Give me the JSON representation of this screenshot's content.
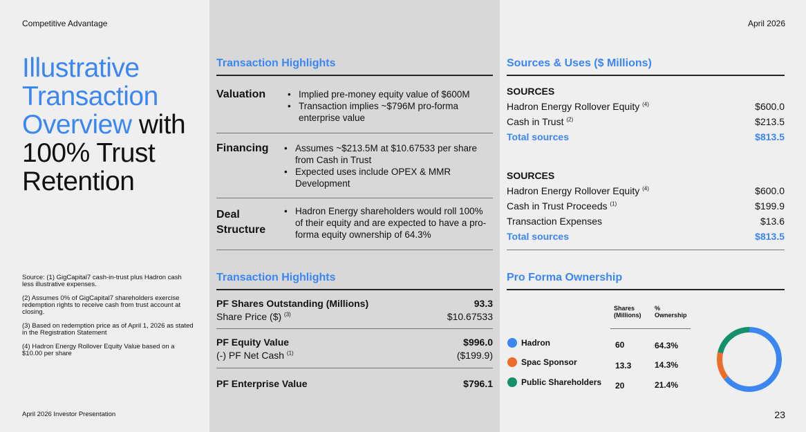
{
  "header": {
    "section": "Competitive Advantage",
    "date": "April 2026"
  },
  "title": {
    "line1": "Illustrative",
    "line2": "Transaction",
    "line3a": "Overview",
    "line3b": " with",
    "line4": "100% Trust",
    "line5": "Retention"
  },
  "highlights": {
    "heading": "Transaction Highlights",
    "items": [
      {
        "label": "Valuation",
        "bullets": [
          "Implied pre-money equity value of $600M",
          "Transaction implies ~$796M pro-forma enterprise value"
        ]
      },
      {
        "label": "Financing",
        "bullets": [
          "Assumes ~$213.5M at $10.67533 per share from Cash in Trust",
          "Expected uses include OPEX & MMR Development"
        ]
      },
      {
        "label": "Deal Structure",
        "bullets": [
          "Hadron Energy shareholders would roll 100% of their equity and are expected to have a pro-forma equity ownership of 64.3%"
        ]
      }
    ]
  },
  "sources_uses": {
    "heading": "Sources & Uses ($ Millions)",
    "blocks": [
      {
        "title": "SOURCES",
        "rows": [
          {
            "label": "Hadron Energy Rollover Equity",
            "note": "(4)",
            "value": "$600.0"
          },
          {
            "label": "Cash in Trust",
            "note": "(2)",
            "value": "$213.5"
          }
        ],
        "total_label": "Total sources",
        "total": "$813.5"
      },
      {
        "title": "SOURCES",
        "rows": [
          {
            "label": "Hadron Energy Rollover Equity",
            "note": "(4)",
            "value": "$600.0"
          },
          {
            "label": "Cash in Trust Proceeds",
            "note": "(1)",
            "value": "$199.9"
          },
          {
            "label": "Transaction Expenses",
            "note": "",
            "value": "$13.6"
          }
        ],
        "total_label": "Total sources",
        "total": "$813.5"
      }
    ]
  },
  "highlights2": {
    "heading": "Transaction Highlights",
    "rows": [
      {
        "label": "PF Shares Outstanding (Millions)",
        "value": "93.3",
        "bold": true
      },
      {
        "label": "Share Price ($)",
        "note": "(3)",
        "value": "$10.67533"
      },
      {
        "label": "PF Equity Value",
        "value": "$996.0",
        "bold": true
      },
      {
        "label": "(-) PF Net Cash",
        "note": "(1)",
        "value": "($199.9)"
      },
      {
        "label": "PF Enterprise Value",
        "value": "$796.1",
        "bold": true
      }
    ]
  },
  "ownership": {
    "heading": "Pro Forma Ownership",
    "col1": "Shares (Millions)",
    "col2": "% Ownership",
    "rows": [
      {
        "name": "Hadron",
        "shares": "60",
        "pct": "64.3%",
        "color": "#3b86f0",
        "value": 64.3
      },
      {
        "name": "Spac Sponsor",
        "shares": "13.3",
        "pct": "14.3%",
        "color": "#ee6c2a",
        "value": 14.3
      },
      {
        "name": "Public Shareholders",
        "shares": "20",
        "pct": "21.4%",
        "color": "#14906a",
        "value": 21.4
      }
    ]
  },
  "footnotes": [
    "Source: (1) GigCapital7 cash-in-trust plus Hadron cash less illustrative expenses.",
    "(2) Assumes 0% of GigCapital7 shareholders exercise redemption rights to receive cash from trust account at closing.",
    "(3) Based on redemption price as of April 1, 2026 as stated in the Registration Statement",
    "(4) Hadron Energy Rollover Equity Value based on a $10.00 per share"
  ],
  "footer": {
    "left": "April 2026 Investor Presentation",
    "page": "23"
  }
}
